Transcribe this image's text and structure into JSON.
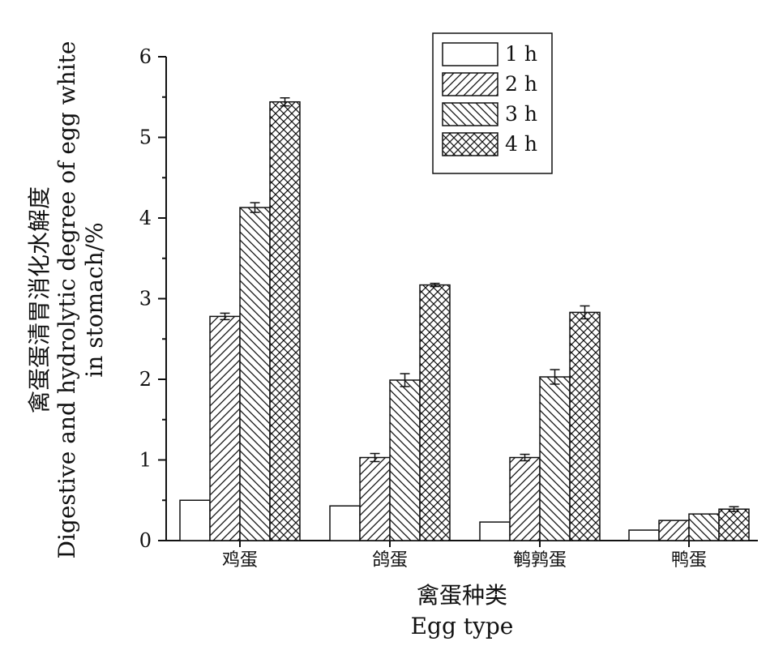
{
  "chart_data": {
    "type": "bar",
    "categories": [
      "鸡蛋",
      "鸽蛋",
      "鹌鹑蛋",
      "鸭蛋"
    ],
    "series": [
      {
        "name": "1 h",
        "values": [
          0.5,
          0.43,
          0.23,
          0.13
        ],
        "errors": [
          0.0,
          0.0,
          0.0,
          0.0
        ],
        "pattern": "none"
      },
      {
        "name": "2 h",
        "values": [
          2.78,
          1.03,
          1.03,
          0.25
        ],
        "errors": [
          0.04,
          0.05,
          0.04,
          0.0
        ],
        "pattern": "diagonal-forward"
      },
      {
        "name": "3 h",
        "values": [
          4.13,
          1.99,
          2.03,
          0.33
        ],
        "errors": [
          0.06,
          0.08,
          0.09,
          0.0
        ],
        "pattern": "diagonal-backward"
      },
      {
        "name": "4 h",
        "values": [
          5.44,
          3.17,
          2.83,
          0.39
        ],
        "errors": [
          0.05,
          0.02,
          0.08,
          0.03
        ],
        "pattern": "crosshatch"
      }
    ],
    "ylim": [
      0,
      6
    ],
    "yticks": [
      "0",
      "1",
      "2",
      "3",
      "4",
      "5",
      "6"
    ],
    "ylabel_zh": "禽蛋蛋清胃消化水解度",
    "ylabel_en_line1": "Digestive and hydrolytic degree of egg white",
    "ylabel_en_line2": "in stomach/%",
    "xlabel_zh": "禽蛋种类",
    "xlabel_en": "Egg type",
    "legend_position": "top-right",
    "grid": false
  }
}
